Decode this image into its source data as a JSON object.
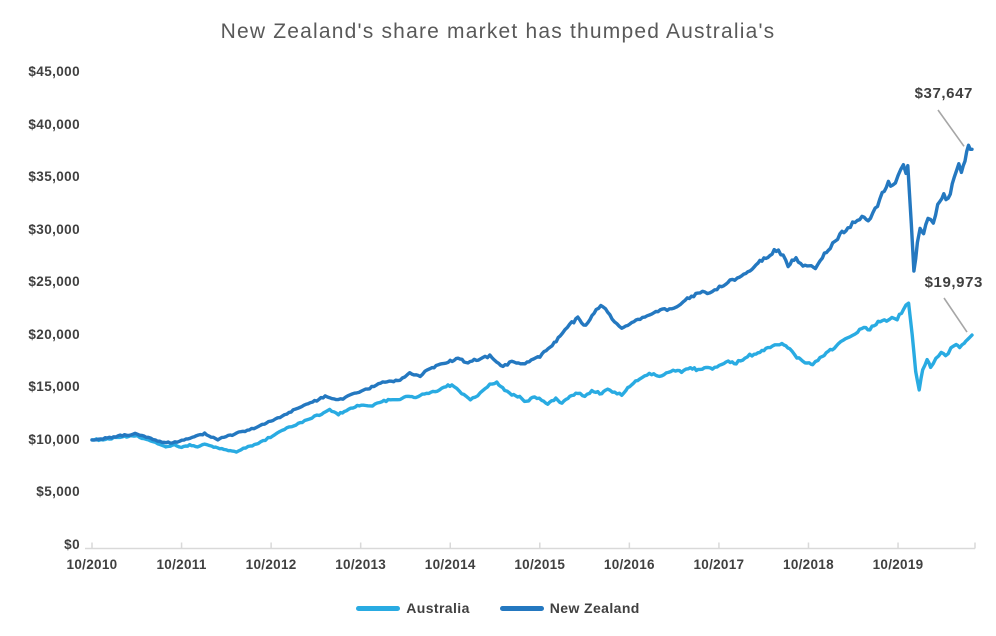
{
  "title": "New Zealand's share market has thumped Australia's",
  "chart_data": {
    "type": "line",
    "title": "New Zealand's share market has thumped Australia's",
    "xlabel": "",
    "ylabel": "",
    "x_axis": {
      "tick_labels": [
        "10/2010",
        "10/2011",
        "10/2012",
        "10/2013",
        "10/2014",
        "10/2015",
        "10/2016",
        "10/2017",
        "10/2018",
        "10/2019"
      ],
      "range_note": "monthly-dated growth of $10,000 invested, Oct 2010 to mid 2020"
    },
    "y_axis": {
      "min": 0,
      "max": 45000,
      "step": 5000,
      "tick_labels": [
        "$0",
        "$5,000",
        "$10,000",
        "$15,000",
        "$20,000",
        "$25,000",
        "$30,000",
        "$35,000",
        "$40,000",
        "$45,000"
      ]
    },
    "grid": "off",
    "legend_position": "bottom",
    "legend": [
      {
        "name": "Australia",
        "color": "#29ABE2"
      },
      {
        "name": "New Zealand",
        "color": "#2478C0"
      }
    ],
    "annotations": [
      {
        "series": "New Zealand",
        "label": "$37,647",
        "value": 37647
      },
      {
        "series": "Australia",
        "label": "$19,973",
        "value": 19973
      }
    ],
    "axis_color": "#D9D9D9",
    "leader_line_color": "#A6A6A6",
    "series": [
      {
        "name": "Australia",
        "color": "#29ABE2",
        "points": [
          [
            0,
            10000
          ],
          [
            0.015,
            10050
          ],
          [
            0.032,
            10250
          ],
          [
            0.049,
            10400
          ],
          [
            0.064,
            10000
          ],
          [
            0.075,
            9650
          ],
          [
            0.084,
            9300
          ],
          [
            0.094,
            9500
          ],
          [
            0.102,
            9300
          ],
          [
            0.111,
            9500
          ],
          [
            0.12,
            9300
          ],
          [
            0.128,
            9600
          ],
          [
            0.136,
            9400
          ],
          [
            0.145,
            9200
          ],
          [
            0.155,
            9000
          ],
          [
            0.164,
            8850
          ],
          [
            0.172,
            9200
          ],
          [
            0.18,
            9400
          ],
          [
            0.189,
            9700
          ],
          [
            0.197,
            10000
          ],
          [
            0.203,
            10300
          ],
          [
            0.216,
            10900
          ],
          [
            0.227,
            11300
          ],
          [
            0.239,
            11700
          ],
          [
            0.25,
            12100
          ],
          [
            0.261,
            12500
          ],
          [
            0.27,
            12900
          ],
          [
            0.28,
            12400
          ],
          [
            0.289,
            12800
          ],
          [
            0.299,
            13100
          ],
          [
            0.306,
            13300
          ],
          [
            0.316,
            13200
          ],
          [
            0.327,
            13600
          ],
          [
            0.339,
            13800
          ],
          [
            0.35,
            13850
          ],
          [
            0.359,
            14200
          ],
          [
            0.368,
            14000
          ],
          [
            0.378,
            14400
          ],
          [
            0.39,
            14600
          ],
          [
            0.4,
            15000
          ],
          [
            0.409,
            15250
          ],
          [
            0.42,
            14400
          ],
          [
            0.43,
            13900
          ],
          [
            0.441,
            14400
          ],
          [
            0.452,
            15300
          ],
          [
            0.46,
            15500
          ],
          [
            0.469,
            14700
          ],
          [
            0.477,
            14300
          ],
          [
            0.486,
            14100
          ],
          [
            0.494,
            13600
          ],
          [
            0.503,
            14100
          ],
          [
            0.511,
            13800
          ],
          [
            0.518,
            13400
          ],
          [
            0.527,
            13900
          ],
          [
            0.534,
            13500
          ],
          [
            0.543,
            14100
          ],
          [
            0.552,
            14500
          ],
          [
            0.56,
            14200
          ],
          [
            0.568,
            14700
          ],
          [
            0.577,
            14400
          ],
          [
            0.586,
            14800
          ],
          [
            0.594,
            14500
          ],
          [
            0.602,
            14300
          ],
          [
            0.611,
            15100
          ],
          [
            0.62,
            15700
          ],
          [
            0.628,
            16100
          ],
          [
            0.636,
            16300
          ],
          [
            0.645,
            16000
          ],
          [
            0.655,
            16400
          ],
          [
            0.663,
            16600
          ],
          [
            0.67,
            16500
          ],
          [
            0.68,
            16900
          ],
          [
            0.689,
            16700
          ],
          [
            0.698,
            17000
          ],
          [
            0.705,
            16800
          ],
          [
            0.713,
            17100
          ],
          [
            0.723,
            17500
          ],
          [
            0.732,
            17300
          ],
          [
            0.742,
            17800
          ],
          [
            0.75,
            18100
          ],
          [
            0.759,
            18400
          ],
          [
            0.768,
            18700
          ],
          [
            0.776,
            19100
          ],
          [
            0.784,
            19200
          ],
          [
            0.793,
            18700
          ],
          [
            0.801,
            17900
          ],
          [
            0.808,
            17500
          ],
          [
            0.815,
            17300
          ],
          [
            0.819,
            17100
          ],
          [
            0.825,
            17600
          ],
          [
            0.832,
            18100
          ],
          [
            0.839,
            18500
          ],
          [
            0.848,
            19100
          ],
          [
            0.856,
            19600
          ],
          [
            0.864,
            20000
          ],
          [
            0.87,
            20400
          ],
          [
            0.877,
            20800
          ],
          [
            0.884,
            20500
          ],
          [
            0.891,
            21100
          ],
          [
            0.898,
            21500
          ],
          [
            0.903,
            21200
          ],
          [
            0.909,
            21700
          ],
          [
            0.915,
            21500
          ],
          [
            0.92,
            22200
          ],
          [
            0.925,
            22900
          ],
          [
            0.928,
            23000
          ],
          [
            0.932,
            20000
          ],
          [
            0.936,
            16500
          ],
          [
            0.94,
            14750
          ],
          [
            0.944,
            16800
          ],
          [
            0.949,
            17600
          ],
          [
            0.953,
            16900
          ],
          [
            0.959,
            17800
          ],
          [
            0.965,
            18300
          ],
          [
            0.97,
            18000
          ],
          [
            0.976,
            18700
          ],
          [
            0.982,
            19100
          ],
          [
            0.986,
            18700
          ],
          [
            0.991,
            19200
          ],
          [
            0.995,
            19600
          ],
          [
            1,
            19973
          ]
        ]
      },
      {
        "name": "New Zealand",
        "color": "#2478C0",
        "points": [
          [
            0,
            10000
          ],
          [
            0.015,
            10150
          ],
          [
            0.032,
            10400
          ],
          [
            0.049,
            10550
          ],
          [
            0.064,
            10200
          ],
          [
            0.077,
            9850
          ],
          [
            0.089,
            9700
          ],
          [
            0.102,
            9900
          ],
          [
            0.114,
            10250
          ],
          [
            0.128,
            10600
          ],
          [
            0.143,
            10050
          ],
          [
            0.157,
            10450
          ],
          [
            0.174,
            10850
          ],
          [
            0.189,
            11250
          ],
          [
            0.203,
            11800
          ],
          [
            0.219,
            12350
          ],
          [
            0.236,
            13150
          ],
          [
            0.253,
            13650
          ],
          [
            0.265,
            14150
          ],
          [
            0.28,
            13750
          ],
          [
            0.293,
            14250
          ],
          [
            0.306,
            14700
          ],
          [
            0.318,
            15050
          ],
          [
            0.333,
            15500
          ],
          [
            0.35,
            15750
          ],
          [
            0.361,
            16350
          ],
          [
            0.373,
            16100
          ],
          [
            0.384,
            16800
          ],
          [
            0.398,
            17250
          ],
          [
            0.407,
            17450
          ],
          [
            0.416,
            17750
          ],
          [
            0.425,
            17350
          ],
          [
            0.439,
            17650
          ],
          [
            0.452,
            17950
          ],
          [
            0.467,
            16950
          ],
          [
            0.477,
            17450
          ],
          [
            0.492,
            17250
          ],
          [
            0.509,
            18000
          ],
          [
            0.523,
            19000
          ],
          [
            0.532,
            19900
          ],
          [
            0.543,
            21000
          ],
          [
            0.552,
            21600
          ],
          [
            0.561,
            20800
          ],
          [
            0.573,
            22400
          ],
          [
            0.581,
            22800
          ],
          [
            0.591,
            21500
          ],
          [
            0.602,
            20600
          ],
          [
            0.611,
            21100
          ],
          [
            0.623,
            21600
          ],
          [
            0.636,
            22000
          ],
          [
            0.648,
            22400
          ],
          [
            0.659,
            22300
          ],
          [
            0.674,
            23200
          ],
          [
            0.691,
            24100
          ],
          [
            0.702,
            24000
          ],
          [
            0.713,
            24500
          ],
          [
            0.725,
            25100
          ],
          [
            0.736,
            25500
          ],
          [
            0.75,
            26300
          ],
          [
            0.759,
            26900
          ],
          [
            0.768,
            27400
          ],
          [
            0.78,
            28200
          ],
          [
            0.791,
            26600
          ],
          [
            0.8,
            27200
          ],
          [
            0.808,
            26300
          ],
          [
            0.815,
            26600
          ],
          [
            0.822,
            26300
          ],
          [
            0.83,
            27400
          ],
          [
            0.839,
            28300
          ],
          [
            0.85,
            29600
          ],
          [
            0.859,
            30000
          ],
          [
            0.867,
            30700
          ],
          [
            0.875,
            31300
          ],
          [
            0.882,
            30800
          ],
          [
            0.89,
            32000
          ],
          [
            0.898,
            33400
          ],
          [
            0.905,
            34300
          ],
          [
            0.91,
            34000
          ],
          [
            0.916,
            35000
          ],
          [
            0.922,
            36300
          ],
          [
            0.925,
            35600
          ],
          [
            0.927,
            36200
          ],
          [
            0.931,
            30500
          ],
          [
            0.934,
            25900
          ],
          [
            0.938,
            28700
          ],
          [
            0.941,
            30000
          ],
          [
            0.945,
            29500
          ],
          [
            0.95,
            31200
          ],
          [
            0.956,
            30700
          ],
          [
            0.961,
            32200
          ],
          [
            0.968,
            33400
          ],
          [
            0.973,
            32800
          ],
          [
            0.98,
            34800
          ],
          [
            0.985,
            36100
          ],
          [
            0.988,
            35500
          ],
          [
            0.992,
            36600
          ],
          [
            0.996,
            37900
          ],
          [
            1,
            37647
          ]
        ]
      }
    ]
  }
}
